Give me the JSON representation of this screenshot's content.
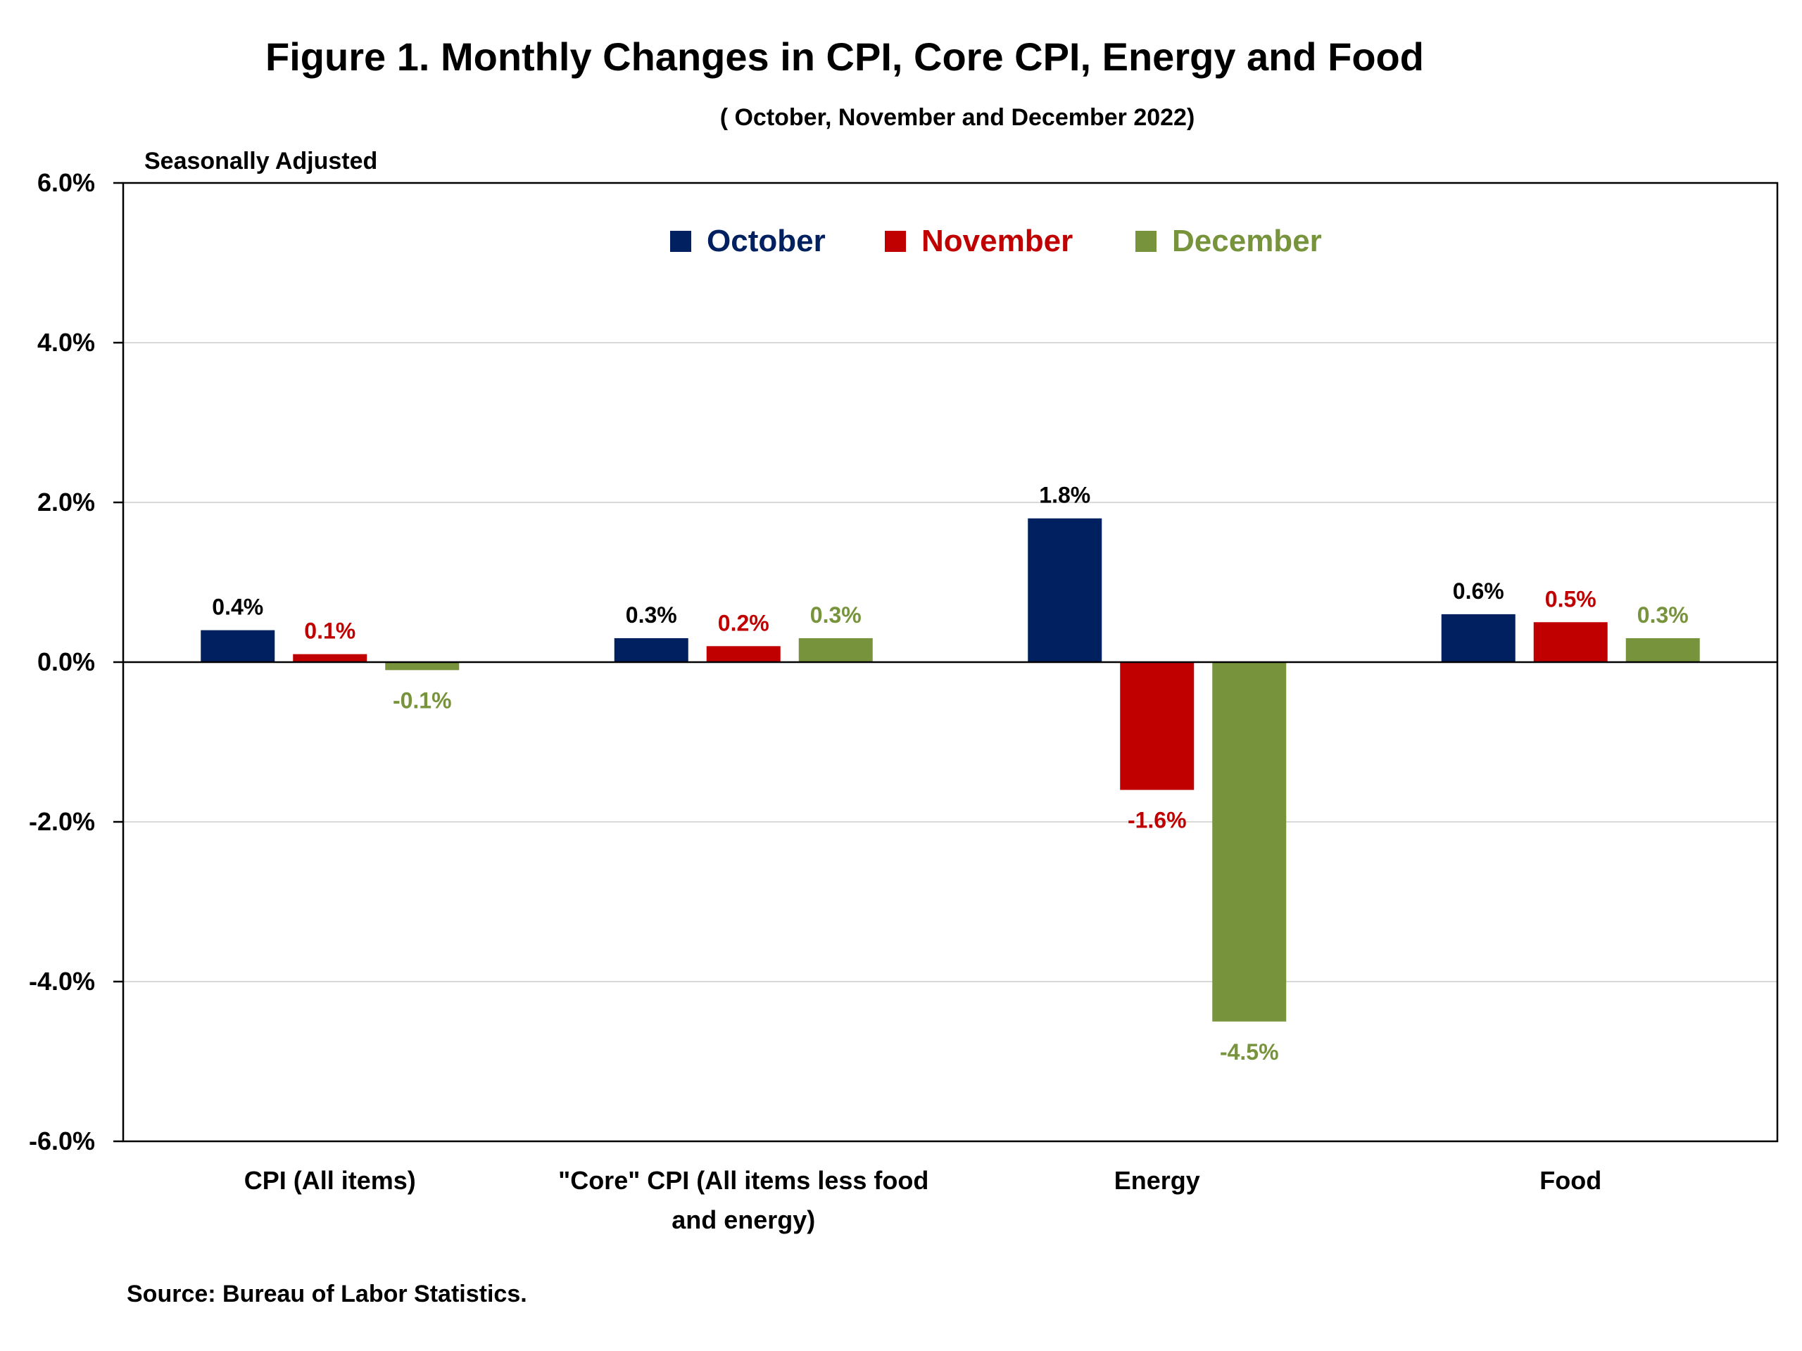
{
  "chart_data": {
    "type": "bar",
    "title": "Figure 1. Monthly Changes in CPI, Core CPI, Energy and Food",
    "subtitle": "( October, November and December 2022)",
    "ylabel": "Seasonally Adjusted",
    "xlabel": "",
    "ylim": [
      -6.0,
      6.0
    ],
    "yticks": [
      6.0,
      4.0,
      2.0,
      0.0,
      -2.0,
      -4.0,
      -6.0
    ],
    "ytick_labels": [
      "6.0%",
      "4.0%",
      "2.0%",
      "0.0%",
      "-2.0%",
      "-4.0%",
      "-6.0%"
    ],
    "grid": true,
    "legend_position": "top-center",
    "categories": [
      [
        "CPI (All items)"
      ],
      [
        "\"Core\" CPI (All items less food",
        "and energy)"
      ],
      [
        "Energy"
      ],
      [
        "Food"
      ]
    ],
    "series": [
      {
        "name": "October",
        "color": "#002060",
        "label_color": "#000000",
        "values": [
          0.4,
          0.3,
          1.8,
          0.6
        ],
        "data_labels": [
          "0.4%",
          "0.3%",
          "1.8%",
          "0.6%"
        ]
      },
      {
        "name": "November",
        "color": "#C00000",
        "label_color": "#C00000",
        "values": [
          0.1,
          0.2,
          -1.6,
          0.5
        ],
        "data_labels": [
          "0.1%",
          "0.2%",
          "-1.6%",
          "0.5%"
        ]
      },
      {
        "name": "December",
        "color": "#77933C",
        "label_color": "#77933C",
        "values": [
          -0.1,
          0.3,
          -4.5,
          0.3
        ],
        "data_labels": [
          "-0.1%",
          "0.3%",
          "-4.5%",
          "0.3%"
        ]
      }
    ],
    "source": "Source: Bureau of Labor Statistics."
  }
}
